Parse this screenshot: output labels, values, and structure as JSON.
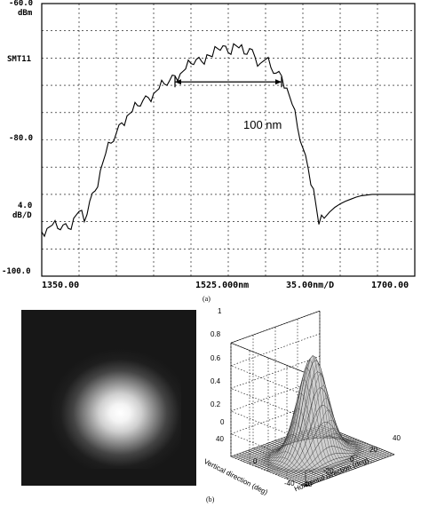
{
  "chart_data": [
    {
      "type": "line",
      "title": "",
      "left_labels": {
        "top_value": "-60.0",
        "top_unit": "dBm",
        "trace": "SMT11",
        "ref_level": "-80.0",
        "scale_value": "4.0",
        "scale_unit": "dB/D",
        "bottom_value": "-100.0"
      },
      "x_labels": {
        "start": "1350.00",
        "center": "1525.000nm",
        "span": "35.00nm/D",
        "stop": "1700.00"
      },
      "x_range_nm": [
        1350,
        1700
      ],
      "y_range_dbm": [
        -100,
        -60
      ],
      "grid": true,
      "annotation": {
        "text": "100 nm",
        "from_nm": 1475,
        "to_nm": 1575,
        "y_dbm": -71.5
      },
      "series": [
        {
          "x": [
            1350,
            1355,
            1360,
            1365,
            1370,
            1375,
            1380,
            1385,
            1390,
            1395,
            1400,
            1405,
            1410,
            1415,
            1420,
            1425,
            1430,
            1435,
            1440,
            1445,
            1450,
            1455,
            1460,
            1465,
            1470,
            1475,
            1480,
            1485,
            1490,
            1495,
            1500,
            1505,
            1510,
            1515,
            1520,
            1525,
            1530,
            1535,
            1540,
            1545,
            1550,
            1555,
            1560,
            1565,
            1570,
            1575,
            1580,
            1585,
            1590,
            1595,
            1600,
            1605,
            1610,
            1615,
            1620,
            1625,
            1630,
            1635,
            1640,
            1645,
            1650,
            1655,
            1660,
            1665,
            1670,
            1675,
            1680,
            1685,
            1690,
            1695,
            1700
          ],
          "values": [
            -93.5,
            -93,
            -92.5,
            -93,
            -92.5,
            -93,
            -91.5,
            -90.5,
            -92,
            -89,
            -87.5,
            -84.5,
            -82,
            -80.5,
            -79,
            -77.5,
            -76.5,
            -75.8,
            -75,
            -74.2,
            -73.8,
            -73.2,
            -72.5,
            -71.8,
            -71.3,
            -70.6,
            -70.3,
            -69.6,
            -68.8,
            -68.2,
            -68.5,
            -67.5,
            -67.8,
            -66.6,
            -66.2,
            -67.2,
            -65.9,
            -66.5,
            -67.4,
            -66.6,
            -67.8,
            -68.8,
            -68.2,
            -69.4,
            -70.2,
            -70.6,
            -72.4,
            -74.8,
            -78.2,
            -81.2,
            -84.2,
            -87.2,
            -92.4,
            -91.5,
            -90.6,
            -89.9,
            -89.4,
            -89,
            -88.7,
            -88.4,
            -88.2,
            -88.1,
            -88,
            -88,
            -88,
            -88,
            -88,
            -88,
            -88,
            -88,
            -88
          ]
        }
      ]
    },
    {
      "type": "heatmap",
      "title": "",
      "description_label": "near-field intensity image"
    },
    {
      "type": "surface",
      "title": "",
      "zlim": [
        0,
        1
      ],
      "z_ticks": [
        "0",
        "0.2",
        "0.4",
        "0.6",
        "0.8",
        "1"
      ],
      "horizontal_ticks": [
        "-40",
        "-20",
        "0",
        "20",
        "40"
      ],
      "vertical_ticks": [
        "40",
        "0",
        "-40"
      ],
      "xlabel": "Horizontal direction (deg)",
      "ylabel": "Vertical direction (deg)",
      "grid": true
    }
  ],
  "captions": {
    "a": "(a)",
    "b": "(b)"
  }
}
